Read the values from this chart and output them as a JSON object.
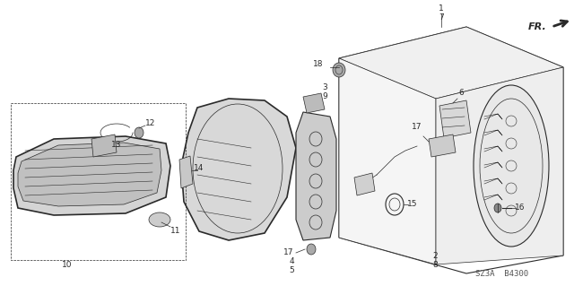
{
  "bg_color": "#ffffff",
  "line_color": "#2a2a2a",
  "fig_width": 6.4,
  "fig_height": 3.19,
  "dpi": 100,
  "watermark": "SZ3A  B4300"
}
